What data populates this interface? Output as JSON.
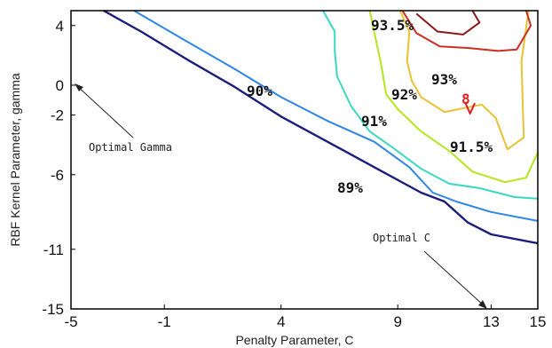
{
  "chart_data": {
    "type": "contour",
    "xlabel": "Penalty Parameter, C",
    "ylabel": "RBF Kernel Parameter, gamma",
    "xlim": [
      -5,
      15
    ],
    "ylim": [
      -15,
      5
    ],
    "xticks": [
      -5,
      -1,
      4,
      9,
      13,
      15
    ],
    "yticks": [
      4,
      0,
      -2,
      -6,
      -11,
      -15
    ],
    "grid": false,
    "series": [
      {
        "name": "89%",
        "color": "#1c1e7c",
        "points": [
          [
            -3.6,
            5
          ],
          [
            -2,
            3.6
          ],
          [
            0,
            1.7
          ],
          [
            2,
            -0.1
          ],
          [
            4,
            -2.1
          ],
          [
            6,
            -3.8
          ],
          [
            8,
            -5.5
          ],
          [
            10,
            -7.2
          ],
          [
            11,
            -7.8
          ],
          [
            12,
            -9.2
          ],
          [
            13,
            -10.0
          ],
          [
            15,
            -10.6
          ]
        ]
      },
      {
        "name": "",
        "color": "#2f86e8",
        "points": [
          [
            -2.3,
            5
          ],
          [
            0,
            2.9
          ],
          [
            2,
            1.1
          ],
          [
            4,
            -0.8
          ],
          [
            6,
            -2.4
          ],
          [
            8,
            -3.8
          ],
          [
            9.5,
            -5.5
          ],
          [
            10.5,
            -7.2
          ],
          [
            11.5,
            -7.8
          ],
          [
            13,
            -8.5
          ],
          [
            15,
            -9.1
          ]
        ]
      },
      {
        "name": "90%",
        "color": "#3cd7c1",
        "points": [
          [
            5.8,
            5
          ],
          [
            6.3,
            3.6
          ],
          [
            6.3,
            2.3
          ],
          [
            6.4,
            0.6
          ],
          [
            7,
            -1.4
          ],
          [
            7.8,
            -3.1
          ],
          [
            8.8,
            -4.2
          ],
          [
            10,
            -5.6
          ],
          [
            11.2,
            -6.6
          ],
          [
            12.5,
            -6.9
          ],
          [
            14,
            -7.5
          ],
          [
            15,
            -7.6
          ]
        ]
      },
      {
        "name": "91.5%",
        "color": "#b5e61d",
        "points": [
          [
            7.8,
            5
          ],
          [
            8,
            3.5
          ],
          [
            8.3,
            1.3
          ],
          [
            8.5,
            -0.6
          ],
          [
            9,
            -1.6
          ],
          [
            10,
            -3.1
          ],
          [
            11.2,
            -4.4
          ],
          [
            12.2,
            -5.8
          ],
          [
            13.6,
            -6.5
          ],
          [
            14.5,
            -6.2
          ],
          [
            15,
            -4.5
          ]
        ]
      },
      {
        "name": "92%",
        "color": "#e8c233",
        "points": [
          [
            9.1,
            5
          ],
          [
            9.5,
            3.6
          ],
          [
            9.4,
            1.6
          ],
          [
            9.6,
            0.3
          ],
          [
            10,
            -0.8
          ],
          [
            11,
            -1.8
          ],
          [
            12.6,
            -1.3
          ],
          [
            13.2,
            -2.2
          ],
          [
            13.7,
            -4.3
          ],
          [
            14.4,
            -3.5
          ],
          [
            14.3,
            1.6
          ],
          [
            14.6,
            5
          ]
        ]
      },
      {
        "name": "93.5%",
        "color": "#cc2e22",
        "points": [
          [
            9.2,
            5
          ],
          [
            9.8,
            3.5
          ],
          [
            10.8,
            2.6
          ],
          [
            12,
            2.5
          ],
          [
            13.3,
            2.3
          ],
          [
            14.1,
            2.4
          ],
          [
            14.7,
            4
          ],
          [
            14.5,
            5
          ]
        ]
      },
      {
        "name": "",
        "color": "#8a1a1a",
        "points": [
          [
            9.8,
            4.8
          ],
          [
            10.7,
            3.6
          ],
          [
            11.8,
            3.4
          ],
          [
            12.5,
            4.2
          ],
          [
            12.2,
            5
          ]
        ]
      },
      {
        "name": "",
        "color": "#e02020",
        "points": [
          [
            11.9,
            -1.2
          ],
          [
            12.1,
            -1.9
          ],
          [
            12.3,
            -1.2
          ]
        ]
      }
    ],
    "contour_labels": [
      "93.5%",
      "93%",
      "92%",
      "91%",
      "90%",
      "91.5%",
      "89%",
      "8"
    ],
    "annotations": [
      "Optimal Gamma",
      "Optimal C"
    ]
  }
}
